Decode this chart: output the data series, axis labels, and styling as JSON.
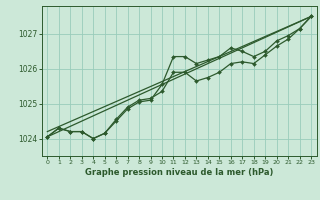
{
  "title": "Graphe pression niveau de la mer (hPa)",
  "bg_color": "#cce8d8",
  "grid_color": "#99ccbb",
  "line_color": "#2d5a2d",
  "xlim": [
    -0.5,
    23.5
  ],
  "ylim": [
    1023.5,
    1027.8
  ],
  "yticks": [
    1024,
    1025,
    1026,
    1027
  ],
  "xticks": [
    0,
    1,
    2,
    3,
    4,
    5,
    6,
    7,
    8,
    9,
    10,
    11,
    12,
    13,
    14,
    15,
    16,
    17,
    18,
    19,
    20,
    21,
    22,
    23
  ],
  "series": [
    {
      "x": [
        0,
        1,
        2,
        3,
        4,
        5,
        6,
        7,
        8,
        9,
        10,
        11,
        12,
        13,
        14,
        15,
        16,
        17,
        18,
        19,
        20,
        21,
        22,
        23
      ],
      "y": [
        1024.05,
        1024.3,
        1024.2,
        1024.2,
        1024.0,
        1024.15,
        1024.5,
        1024.85,
        1025.05,
        1025.1,
        1025.55,
        1026.35,
        1026.35,
        1026.15,
        1026.25,
        1026.35,
        1026.6,
        1026.5,
        1026.35,
        1026.5,
        1026.8,
        1026.95,
        1027.15,
        1027.5
      ],
      "marker": true,
      "markersize": 2.0,
      "lw": 0.9
    },
    {
      "x": [
        0,
        1,
        2,
        3,
        4,
        5,
        6,
        7,
        8,
        9,
        10,
        11,
        12,
        13,
        14,
        15,
        16,
        17,
        18,
        19,
        20,
        21,
        22,
        23
      ],
      "y": [
        1024.05,
        1024.3,
        1024.2,
        1024.2,
        1024.0,
        1024.15,
        1024.55,
        1024.9,
        1025.1,
        1025.15,
        1025.35,
        1025.9,
        1025.9,
        1025.65,
        1025.75,
        1025.9,
        1026.15,
        1026.2,
        1026.15,
        1026.4,
        1026.65,
        1026.85,
        1027.15,
        1027.5
      ],
      "marker": true,
      "markersize": 2.0,
      "lw": 0.9
    },
    {
      "x": [
        0,
        23
      ],
      "y": [
        1024.05,
        1027.5
      ],
      "marker": false,
      "markersize": 0,
      "lw": 0.9
    },
    {
      "x": [
        0,
        23
      ],
      "y": [
        1024.2,
        1027.5
      ],
      "marker": false,
      "markersize": 0,
      "lw": 0.9
    }
  ]
}
